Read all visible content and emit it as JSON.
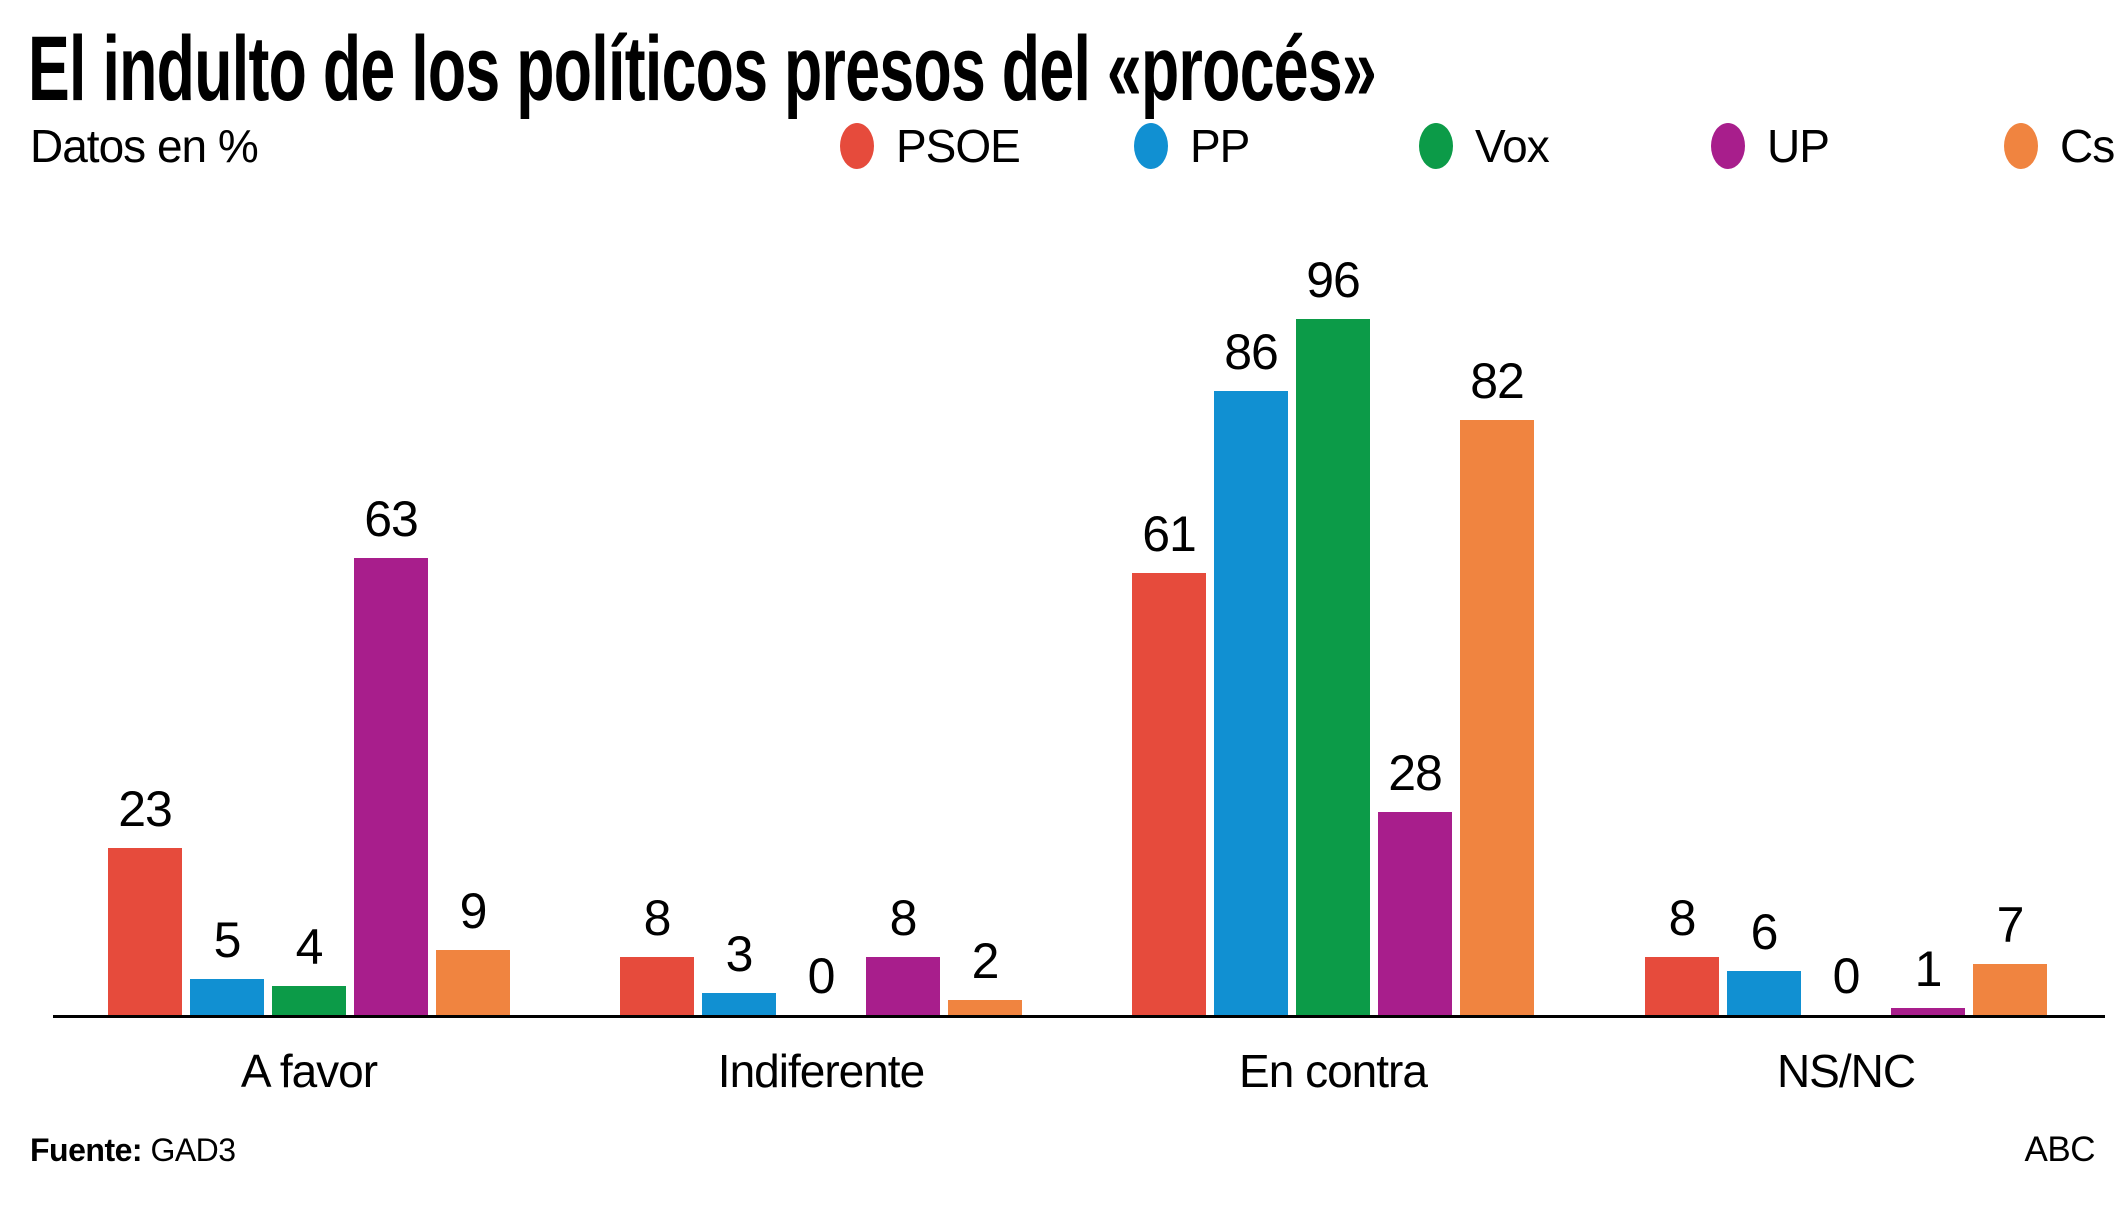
{
  "title": "El indulto de los políticos presos del «procés»",
  "subtitle": "Datos en %",
  "footer": {
    "source_label": "Fuente:",
    "source_value": "GAD3",
    "credit": "ABC"
  },
  "colors": {
    "psoe": "#E64B3C",
    "pp": "#1190D2",
    "vox": "#0C9B48",
    "up": "#A81E8C",
    "cs": "#F08440",
    "axis": "#000000",
    "text": "#000000"
  },
  "chart_data": {
    "type": "bar",
    "unit": "%",
    "categories": [
      "A favor",
      "Indiferente",
      "En contra",
      "NS/NC"
    ],
    "series": [
      {
        "name": "PSOE",
        "color": "#E64B3C",
        "values": [
          23,
          8,
          61,
          8
        ]
      },
      {
        "name": "PP",
        "color": "#1190D2",
        "values": [
          5,
          3,
          86,
          6
        ]
      },
      {
        "name": "Vox",
        "color": "#0C9B48",
        "values": [
          4,
          0,
          96,
          0
        ]
      },
      {
        "name": "UP",
        "color": "#A81E8C",
        "values": [
          63,
          8,
          28,
          1
        ]
      },
      {
        "name": "Cs",
        "color": "#F08440",
        "values": [
          9,
          2,
          82,
          7
        ]
      }
    ],
    "ylim": [
      0,
      100
    ],
    "grid": false,
    "value_labels": true,
    "legend_position": "top",
    "xlabel": "",
    "ylabel": ""
  }
}
